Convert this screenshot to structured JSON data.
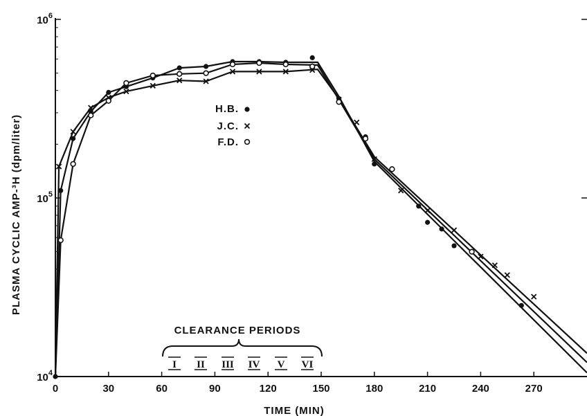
{
  "chart_data": {
    "type": "line",
    "yscale": "log",
    "xlim": [
      0,
      300
    ],
    "ylim": [
      10000,
      1000000
    ],
    "xlabel": "TIME (MIN)",
    "ylabel": "PLASMA CYCLIC AMP-³H (dpm/liter)",
    "xticks": [
      "0",
      "30",
      "60",
      "90",
      "120",
      "150",
      "180",
      "210",
      "240",
      "270"
    ],
    "yticks": [
      {
        "base": "10",
        "exp": "4"
      },
      {
        "base": "10",
        "exp": "5"
      },
      {
        "base": "10",
        "exp": "6"
      }
    ],
    "legend": [
      {
        "label": "H.B.",
        "marker": "●"
      },
      {
        "label": "J.C.",
        "marker": "x"
      },
      {
        "label": "F.D.",
        "marker": "o"
      }
    ],
    "annotation": {
      "title": "CLEARANCE PERIODS",
      "periods": [
        "I",
        "II",
        "III",
        "IV",
        "V",
        "VI"
      ]
    },
    "series": [
      {
        "name": "H.B.",
        "marker": "filled-circle",
        "points": [
          [
            0,
            10000
          ],
          [
            3,
            110000
          ],
          [
            10,
            215000
          ],
          [
            20,
            305000
          ],
          [
            30,
            390000
          ],
          [
            40,
            420000
          ],
          [
            55,
            470000
          ],
          [
            70,
            535000
          ],
          [
            85,
            545000
          ],
          [
            100,
            580000
          ],
          [
            115,
            580000
          ],
          [
            130,
            575000
          ],
          [
            145,
            610000
          ],
          [
            160,
            360000
          ],
          [
            175,
            220000
          ],
          [
            180,
            155000
          ],
          [
            205,
            90000
          ],
          [
            210,
            73000
          ],
          [
            218,
            67000
          ],
          [
            225,
            54000
          ],
          [
            263,
            25000
          ]
        ],
        "fit": [
          [
            0,
            10000
          ],
          [
            3,
            110000
          ],
          [
            10,
            215000
          ],
          [
            20,
            305000
          ],
          [
            30,
            390000
          ],
          [
            40,
            420000
          ],
          [
            55,
            470000
          ],
          [
            70,
            535000
          ],
          [
            85,
            545000
          ],
          [
            100,
            580000
          ],
          [
            115,
            580000
          ],
          [
            130,
            575000
          ],
          [
            148,
            575000
          ],
          [
            160,
            370000
          ],
          [
            180,
            160000
          ],
          [
            300,
            10500
          ]
        ]
      },
      {
        "name": "J.C.",
        "marker": "x",
        "points": [
          [
            2,
            150000
          ],
          [
            10,
            235000
          ],
          [
            20,
            320000
          ],
          [
            30,
            365000
          ],
          [
            40,
            395000
          ],
          [
            55,
            425000
          ],
          [
            70,
            455000
          ],
          [
            85,
            450000
          ],
          [
            100,
            510000
          ],
          [
            115,
            510000
          ],
          [
            130,
            510000
          ],
          [
            145,
            520000
          ],
          [
            160,
            355000
          ],
          [
            170,
            265000
          ],
          [
            180,
            165000
          ],
          [
            195,
            110000
          ],
          [
            210,
            85000
          ],
          [
            225,
            66000
          ],
          [
            240,
            47000
          ],
          [
            248,
            42000
          ],
          [
            255,
            37000
          ],
          [
            270,
            28000
          ]
        ],
        "fit": [
          [
            0,
            10000
          ],
          [
            2,
            150000
          ],
          [
            10,
            235000
          ],
          [
            20,
            320000
          ],
          [
            30,
            365000
          ],
          [
            40,
            395000
          ],
          [
            55,
            425000
          ],
          [
            70,
            455000
          ],
          [
            85,
            450000
          ],
          [
            100,
            510000
          ],
          [
            115,
            510000
          ],
          [
            130,
            510000
          ],
          [
            148,
            525000
          ],
          [
            160,
            360000
          ],
          [
            180,
            170000
          ],
          [
            300,
            13500
          ]
        ]
      },
      {
        "name": "F.D.",
        "marker": "open-circle",
        "points": [
          [
            3,
            58000
          ],
          [
            10,
            155000
          ],
          [
            20,
            290000
          ],
          [
            30,
            350000
          ],
          [
            40,
            440000
          ],
          [
            55,
            485000
          ],
          [
            70,
            495000
          ],
          [
            85,
            500000
          ],
          [
            100,
            560000
          ],
          [
            115,
            570000
          ],
          [
            130,
            560000
          ],
          [
            145,
            545000
          ],
          [
            160,
            345000
          ],
          [
            175,
            215000
          ],
          [
            190,
            145000
          ],
          [
            235,
            50000
          ]
        ],
        "fit": [
          [
            0,
            10000
          ],
          [
            3,
            58000
          ],
          [
            10,
            155000
          ],
          [
            20,
            290000
          ],
          [
            30,
            350000
          ],
          [
            40,
            440000
          ],
          [
            55,
            485000
          ],
          [
            70,
            495000
          ],
          [
            85,
            500000
          ],
          [
            100,
            560000
          ],
          [
            115,
            570000
          ],
          [
            130,
            560000
          ],
          [
            148,
            555000
          ],
          [
            160,
            355000
          ],
          [
            180,
            165000
          ],
          [
            300,
            12000
          ]
        ]
      }
    ]
  }
}
